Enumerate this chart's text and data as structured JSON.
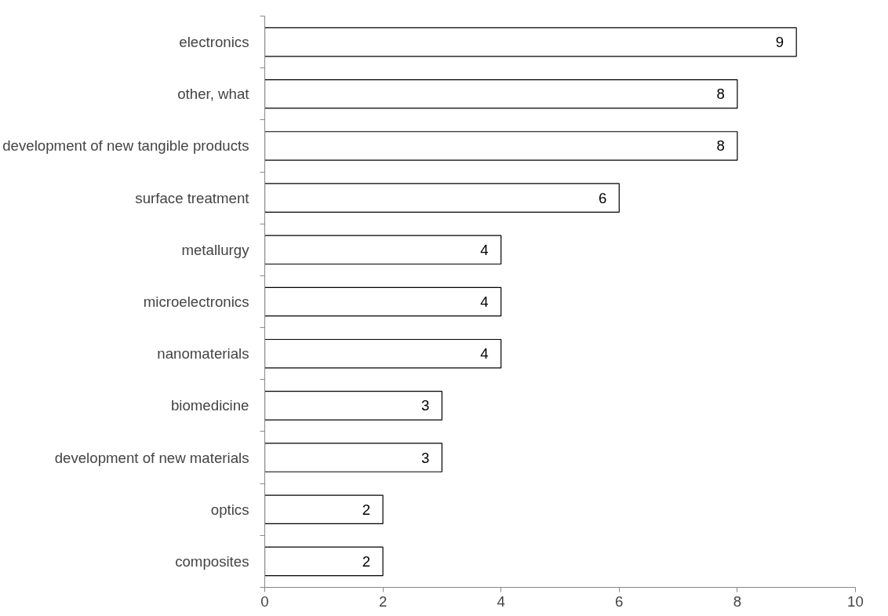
{
  "chart_data": {
    "type": "bar",
    "orientation": "horizontal",
    "categories": [
      "electronics",
      "other, what",
      "development of new tangible products",
      "surface treatment",
      "metallurgy",
      "microelectronics",
      "nanomaterials",
      "biomedicine",
      "development of new materials",
      "optics",
      "composites"
    ],
    "values": [
      9,
      8,
      8,
      6,
      4,
      4,
      4,
      3,
      3,
      2,
      2
    ],
    "color": "#ffffff",
    "xlim": [
      0,
      10
    ],
    "xticks": [
      0,
      2,
      4,
      6,
      8,
      10
    ],
    "grid": false,
    "data_labels": true
  }
}
